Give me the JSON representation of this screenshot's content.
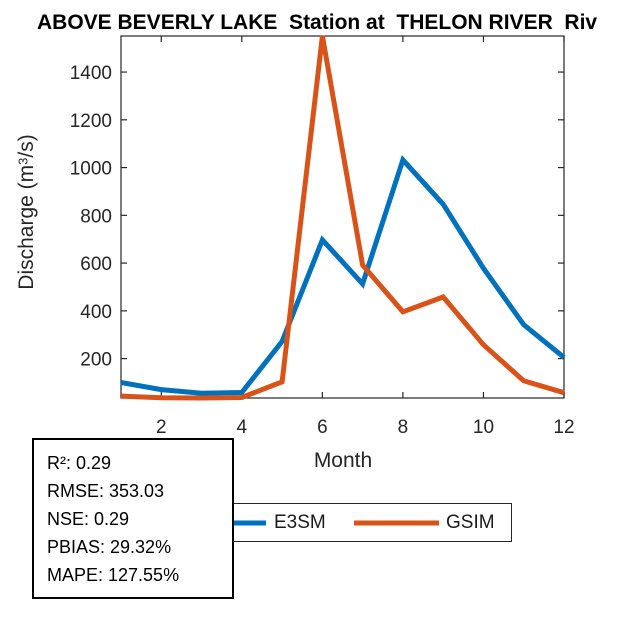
{
  "title": "ABOVE BEVERLY LAKE  Station at  THELON RIVER  Riv",
  "axes": {
    "x": {
      "label": "Month",
      "ticks": [
        2,
        4,
        6,
        8,
        10,
        12
      ],
      "range": [
        1,
        12
      ]
    },
    "y": {
      "label_pre": "Discharge (m",
      "label_sup": "3",
      "label_post": "/s)",
      "ticks": [
        200,
        400,
        600,
        800,
        1000,
        1200,
        1400
      ],
      "range": [
        35,
        1551
      ]
    }
  },
  "legend": {
    "entries": [
      {
        "label": "E3SM",
        "color": "#0072BD"
      },
      {
        "label": "GSIM",
        "color": "#D95319"
      }
    ]
  },
  "stats_box": {
    "lines": [
      "R²: 0.29",
      "RMSE: 353.03",
      "NSE: 0.29",
      "PBIAS: 29.32%",
      "MAPE: 127.55%"
    ]
  },
  "chart_data": {
    "type": "line",
    "title": "ABOVE BEVERLY LAKE  Station at  THELON RIVER  Riv",
    "xlabel": "Month",
    "ylabel": "Discharge (m^3/s)",
    "x": [
      1,
      2,
      3,
      4,
      5,
      6,
      7,
      8,
      9,
      10,
      11,
      12
    ],
    "series": [
      {
        "name": "E3SM",
        "color": "#0072BD",
        "values": [
          100,
          70,
          55,
          58,
          272,
          697,
          513,
          1032,
          846,
          578,
          342,
          205
        ]
      },
      {
        "name": "GSIM",
        "color": "#D95319",
        "values": [
          43,
          36,
          35,
          37,
          103,
          1551,
          592,
          396,
          458,
          258,
          107,
          57
        ]
      }
    ],
    "xlim": [
      1,
      12
    ],
    "ylim": [
      35,
      1551
    ],
    "x_ticks": [
      2,
      4,
      6,
      8,
      10,
      12
    ],
    "y_ticks": [
      200,
      400,
      600,
      800,
      1000,
      1200,
      1400
    ],
    "grid": false,
    "legend_position": "below-axis",
    "axis_color": "#262626",
    "line_width": 5
  }
}
